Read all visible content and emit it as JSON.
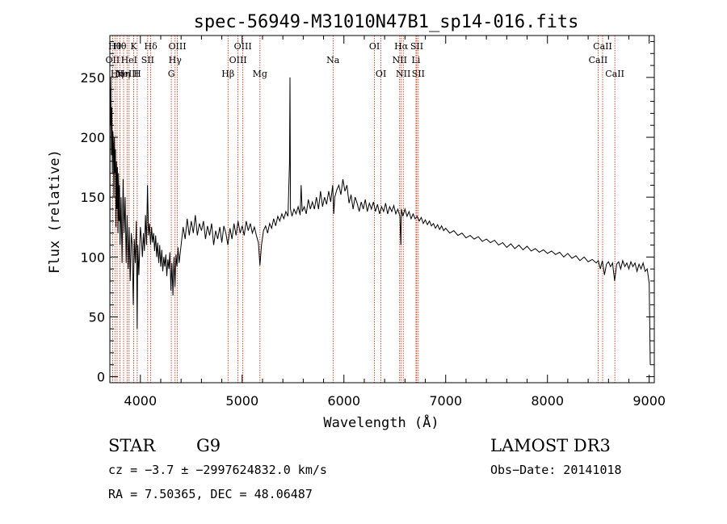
{
  "chart_data": {
    "type": "line",
    "title": "spec-56949-M31010N47B1_sp14-016.fits",
    "xlabel": "Wavelength (Å)",
    "ylabel": "Flux (relative)",
    "xlim": [
      3700,
      9050
    ],
    "ylim": [
      -5,
      285
    ],
    "x_ticks": [
      4000,
      5000,
      6000,
      7000,
      8000,
      9000
    ],
    "y_ticks": [
      0,
      50,
      100,
      150,
      200,
      250
    ],
    "grid": false,
    "series": [
      {
        "name": "flux",
        "points": [
          [
            3700,
            0
          ],
          [
            3702,
            240
          ],
          [
            3705,
            210
          ],
          [
            3710,
            250
          ],
          [
            3715,
            185
          ],
          [
            3720,
            225
          ],
          [
            3725,
            170
          ],
          [
            3730,
            205
          ],
          [
            3735,
            195
          ],
          [
            3740,
            150
          ],
          [
            3745,
            200
          ],
          [
            3750,
            170
          ],
          [
            3755,
            190
          ],
          [
            3760,
            125
          ],
          [
            3765,
            180
          ],
          [
            3770,
            140
          ],
          [
            3775,
            175
          ],
          [
            3780,
            120
          ],
          [
            3785,
            170
          ],
          [
            3790,
            130
          ],
          [
            3795,
            160
          ],
          [
            3800,
            110
          ],
          [
            3810,
            150
          ],
          [
            3820,
            95
          ],
          [
            3830,
            165
          ],
          [
            3840,
            120
          ],
          [
            3850,
            150
          ],
          [
            3860,
            95
          ],
          [
            3870,
            135
          ],
          [
            3880,
            90
          ],
          [
            3890,
            125
          ],
          [
            3900,
            80
          ],
          [
            3910,
            120
          ],
          [
            3920,
            110
          ],
          [
            3930,
            60
          ],
          [
            3940,
            115
          ],
          [
            3950,
            95
          ],
          [
            3960,
            130
          ],
          [
            3968,
            40
          ],
          [
            3975,
            110
          ],
          [
            3985,
            85
          ],
          [
            4000,
            125
          ],
          [
            4010,
            115
          ],
          [
            4020,
            100
          ],
          [
            4030,
            120
          ],
          [
            4040,
            105
          ],
          [
            4050,
            135
          ],
          [
            4060,
            110
          ],
          [
            4070,
            160
          ],
          [
            4080,
            118
          ],
          [
            4090,
            128
          ],
          [
            4100,
            110
          ],
          [
            4110,
            125
          ],
          [
            4120,
            112
          ],
          [
            4130,
            120
          ],
          [
            4140,
            105
          ],
          [
            4150,
            118
          ],
          [
            4160,
            100
          ],
          [
            4170,
            112
          ],
          [
            4180,
            95
          ],
          [
            4190,
            110
          ],
          [
            4200,
            92
          ],
          [
            4210,
            106
          ],
          [
            4220,
            88
          ],
          [
            4230,
            100
          ],
          [
            4240,
            92
          ],
          [
            4250,
            102
          ],
          [
            4260,
            84
          ],
          [
            4270,
            98
          ],
          [
            4280,
            90
          ],
          [
            4290,
            104
          ],
          [
            4300,
            72
          ],
          [
            4310,
            95
          ],
          [
            4320,
            68
          ],
          [
            4330,
            100
          ],
          [
            4340,
            75
          ],
          [
            4350,
            102
          ],
          [
            4360,
            92
          ],
          [
            4370,
            108
          ],
          [
            4380,
            95
          ],
          [
            4400,
            110
          ],
          [
            4420,
            125
          ],
          [
            4440,
            115
          ],
          [
            4460,
            132
          ],
          [
            4480,
            118
          ],
          [
            4500,
            130
          ],
          [
            4520,
            120
          ],
          [
            4540,
            135
          ],
          [
            4560,
            118
          ],
          [
            4580,
            128
          ],
          [
            4600,
            122
          ],
          [
            4620,
            130
          ],
          [
            4640,
            115
          ],
          [
            4660,
            126
          ],
          [
            4680,
            118
          ],
          [
            4700,
            128
          ],
          [
            4720,
            110
          ],
          [
            4740,
            122
          ],
          [
            4760,
            115
          ],
          [
            4780,
            125
          ],
          [
            4800,
            112
          ],
          [
            4820,
            126
          ],
          [
            4840,
            120
          ],
          [
            4860,
            110
          ],
          [
            4880,
            124
          ],
          [
            4900,
            115
          ],
          [
            4920,
            128
          ],
          [
            4940,
            118
          ],
          [
            4960,
            130
          ],
          [
            4980,
            120
          ],
          [
            5000,
            126
          ],
          [
            5020,
            118
          ],
          [
            5040,
            130
          ],
          [
            5060,
            122
          ],
          [
            5080,
            128
          ],
          [
            5100,
            120
          ],
          [
            5120,
            125
          ],
          [
            5140,
            118
          ],
          [
            5160,
            112
          ],
          [
            5175,
            93
          ],
          [
            5190,
            110
          ],
          [
            5210,
            122
          ],
          [
            5230,
            126
          ],
          [
            5250,
            120
          ],
          [
            5270,
            128
          ],
          [
            5290,
            124
          ],
          [
            5310,
            132
          ],
          [
            5330,
            126
          ],
          [
            5350,
            134
          ],
          [
            5370,
            130
          ],
          [
            5390,
            136
          ],
          [
            5410,
            132
          ],
          [
            5430,
            138
          ],
          [
            5450,
            134
          ],
          [
            5465,
            178
          ],
          [
            5470,
            250
          ],
          [
            5475,
            140
          ],
          [
            5490,
            134
          ],
          [
            5510,
            140
          ],
          [
            5530,
            136
          ],
          [
            5550,
            142
          ],
          [
            5570,
            135
          ],
          [
            5580,
            160
          ],
          [
            5590,
            138
          ],
          [
            5610,
            142
          ],
          [
            5630,
            136
          ],
          [
            5650,
            148
          ],
          [
            5670,
            140
          ],
          [
            5690,
            146
          ],
          [
            5710,
            140
          ],
          [
            5730,
            150
          ],
          [
            5750,
            140
          ],
          [
            5770,
            155
          ],
          [
            5790,
            142
          ],
          [
            5810,
            150
          ],
          [
            5830,
            144
          ],
          [
            5850,
            155
          ],
          [
            5870,
            146
          ],
          [
            5890,
            160
          ],
          [
            5900,
            136
          ],
          [
            5910,
            150
          ],
          [
            5930,
            156
          ],
          [
            5950,
            160
          ],
          [
            5970,
            152
          ],
          [
            5990,
            165
          ],
          [
            6010,
            155
          ],
          [
            6030,
            160
          ],
          [
            6050,
            145
          ],
          [
            6070,
            152
          ],
          [
            6090,
            140
          ],
          [
            6110,
            150
          ],
          [
            6130,
            145
          ],
          [
            6150,
            138
          ],
          [
            6170,
            146
          ],
          [
            6190,
            140
          ],
          [
            6210,
            148
          ],
          [
            6230,
            138
          ],
          [
            6250,
            145
          ],
          [
            6270,
            140
          ],
          [
            6290,
            146
          ],
          [
            6310,
            138
          ],
          [
            6330,
            144
          ],
          [
            6350,
            136
          ],
          [
            6370,
            142
          ],
          [
            6390,
            138
          ],
          [
            6410,
            145
          ],
          [
            6430,
            136
          ],
          [
            6450,
            142
          ],
          [
            6470,
            138
          ],
          [
            6490,
            143
          ],
          [
            6510,
            136
          ],
          [
            6530,
            140
          ],
          [
            6550,
            134
          ],
          [
            6560,
            110
          ],
          [
            6565,
            140
          ],
          [
            6580,
            134
          ],
          [
            6600,
            140
          ],
          [
            6620,
            134
          ],
          [
            6640,
            138
          ],
          [
            6660,
            132
          ],
          [
            6680,
            136
          ],
          [
            6700,
            132
          ],
          [
            6720,
            134
          ],
          [
            6740,
            130
          ],
          [
            6760,
            133
          ],
          [
            6780,
            128
          ],
          [
            6800,
            131
          ],
          [
            6820,
            127
          ],
          [
            6840,
            130
          ],
          [
            6860,
            126
          ],
          [
            6880,
            128
          ],
          [
            6900,
            124
          ],
          [
            6920,
            127
          ],
          [
            6940,
            123
          ],
          [
            6960,
            126
          ],
          [
            6980,
            122
          ],
          [
            7000,
            124
          ],
          [
            7040,
            120
          ],
          [
            7080,
            122
          ],
          [
            7120,
            118
          ],
          [
            7160,
            120
          ],
          [
            7200,
            116
          ],
          [
            7240,
            118
          ],
          [
            7280,
            115
          ],
          [
            7320,
            117
          ],
          [
            7360,
            113
          ],
          [
            7400,
            115
          ],
          [
            7440,
            112
          ],
          [
            7480,
            114
          ],
          [
            7520,
            110
          ],
          [
            7560,
            112
          ],
          [
            7600,
            108
          ],
          [
            7640,
            111
          ],
          [
            7680,
            107
          ],
          [
            7720,
            110
          ],
          [
            7760,
            106
          ],
          [
            7800,
            109
          ],
          [
            7840,
            105
          ],
          [
            7880,
            107
          ],
          [
            7920,
            104
          ],
          [
            7960,
            106
          ],
          [
            8000,
            103
          ],
          [
            8040,
            105
          ],
          [
            8080,
            102
          ],
          [
            8120,
            104
          ],
          [
            8160,
            100
          ],
          [
            8200,
            103
          ],
          [
            8240,
            99
          ],
          [
            8280,
            101
          ],
          [
            8320,
            97
          ],
          [
            8360,
            100
          ],
          [
            8400,
            96
          ],
          [
            8440,
            98
          ],
          [
            8480,
            95
          ],
          [
            8500,
            97
          ],
          [
            8520,
            90
          ],
          [
            8540,
            97
          ],
          [
            8560,
            85
          ],
          [
            8580,
            94
          ],
          [
            8600,
            96
          ],
          [
            8620,
            92
          ],
          [
            8640,
            95
          ],
          [
            8660,
            80
          ],
          [
            8680,
            94
          ],
          [
            8700,
            96
          ],
          [
            8720,
            90
          ],
          [
            8740,
            97
          ],
          [
            8760,
            92
          ],
          [
            8780,
            95
          ],
          [
            8800,
            90
          ],
          [
            8820,
            96
          ],
          [
            8840,
            92
          ],
          [
            8860,
            95
          ],
          [
            8880,
            88
          ],
          [
            8900,
            94
          ],
          [
            8920,
            90
          ],
          [
            8940,
            95
          ],
          [
            8960,
            88
          ],
          [
            8980,
            90
          ],
          [
            9000,
            78
          ],
          [
            9010,
            10
          ]
        ]
      }
    ],
    "lines": [
      {
        "x": 3727,
        "label": "OII",
        "row": 2
      },
      {
        "x": 3750,
        "label": "Hθ",
        "row": 1
      },
      {
        "x": 3771,
        "label": "Hη",
        "row": 3
      },
      {
        "x": 3798,
        "label": "Hθ",
        "row": 1
      },
      {
        "x": 3835,
        "label": "Hη",
        "row": 3
      },
      {
        "x": 3869,
        "label": "NeIII",
        "row": 3
      },
      {
        "x": 3889,
        "label": "HeI",
        "row": 2
      },
      {
        "x": 3934,
        "label": "K",
        "row": 1
      },
      {
        "x": 3969,
        "label": "H",
        "row": 3
      },
      {
        "x": 4072,
        "label": "SII",
        "row": 2
      },
      {
        "x": 4102,
        "label": "Hδ",
        "row": 1
      },
      {
        "x": 4304,
        "label": "G",
        "row": 3
      },
      {
        "x": 4341,
        "label": "Hγ",
        "row": 2
      },
      {
        "x": 4363,
        "label": "OIII",
        "row": 1
      },
      {
        "x": 4861,
        "label": "Hβ",
        "row": 3
      },
      {
        "x": 4959,
        "label": "OIII",
        "row": 2
      },
      {
        "x": 5007,
        "label": "OIII",
        "row": 1
      },
      {
        "x": 5175,
        "label": "Mg",
        "row": 3
      },
      {
        "x": 5893,
        "label": "Na",
        "row": 2
      },
      {
        "x": 6300,
        "label": "OI",
        "row": 1
      },
      {
        "x": 6364,
        "label": "OI",
        "row": 3
      },
      {
        "x": 6548,
        "label": "NII",
        "row": 2
      },
      {
        "x": 6563,
        "label": "Hα",
        "row": 1
      },
      {
        "x": 6583,
        "label": "NII",
        "row": 3
      },
      {
        "x": 6708,
        "label": "Li",
        "row": 2
      },
      {
        "x": 6716,
        "label": "SII",
        "row": 1
      },
      {
        "x": 6731,
        "label": "SII",
        "row": 3
      },
      {
        "x": 8498,
        "label": "CaII",
        "row": 2
      },
      {
        "x": 8542,
        "label": "CaII",
        "row": 1
      },
      {
        "x": 8662,
        "label": "CaII",
        "row": 3
      }
    ]
  },
  "info": {
    "class": "STAR",
    "subclass": "G9",
    "survey": "LAMOST DR3",
    "cz": "cz = −3.7 ± −2997624832.0 km/s",
    "obs_date": "Obs−Date: 20141018",
    "radec": "RA =   7.50365, DEC =  48.06487"
  }
}
